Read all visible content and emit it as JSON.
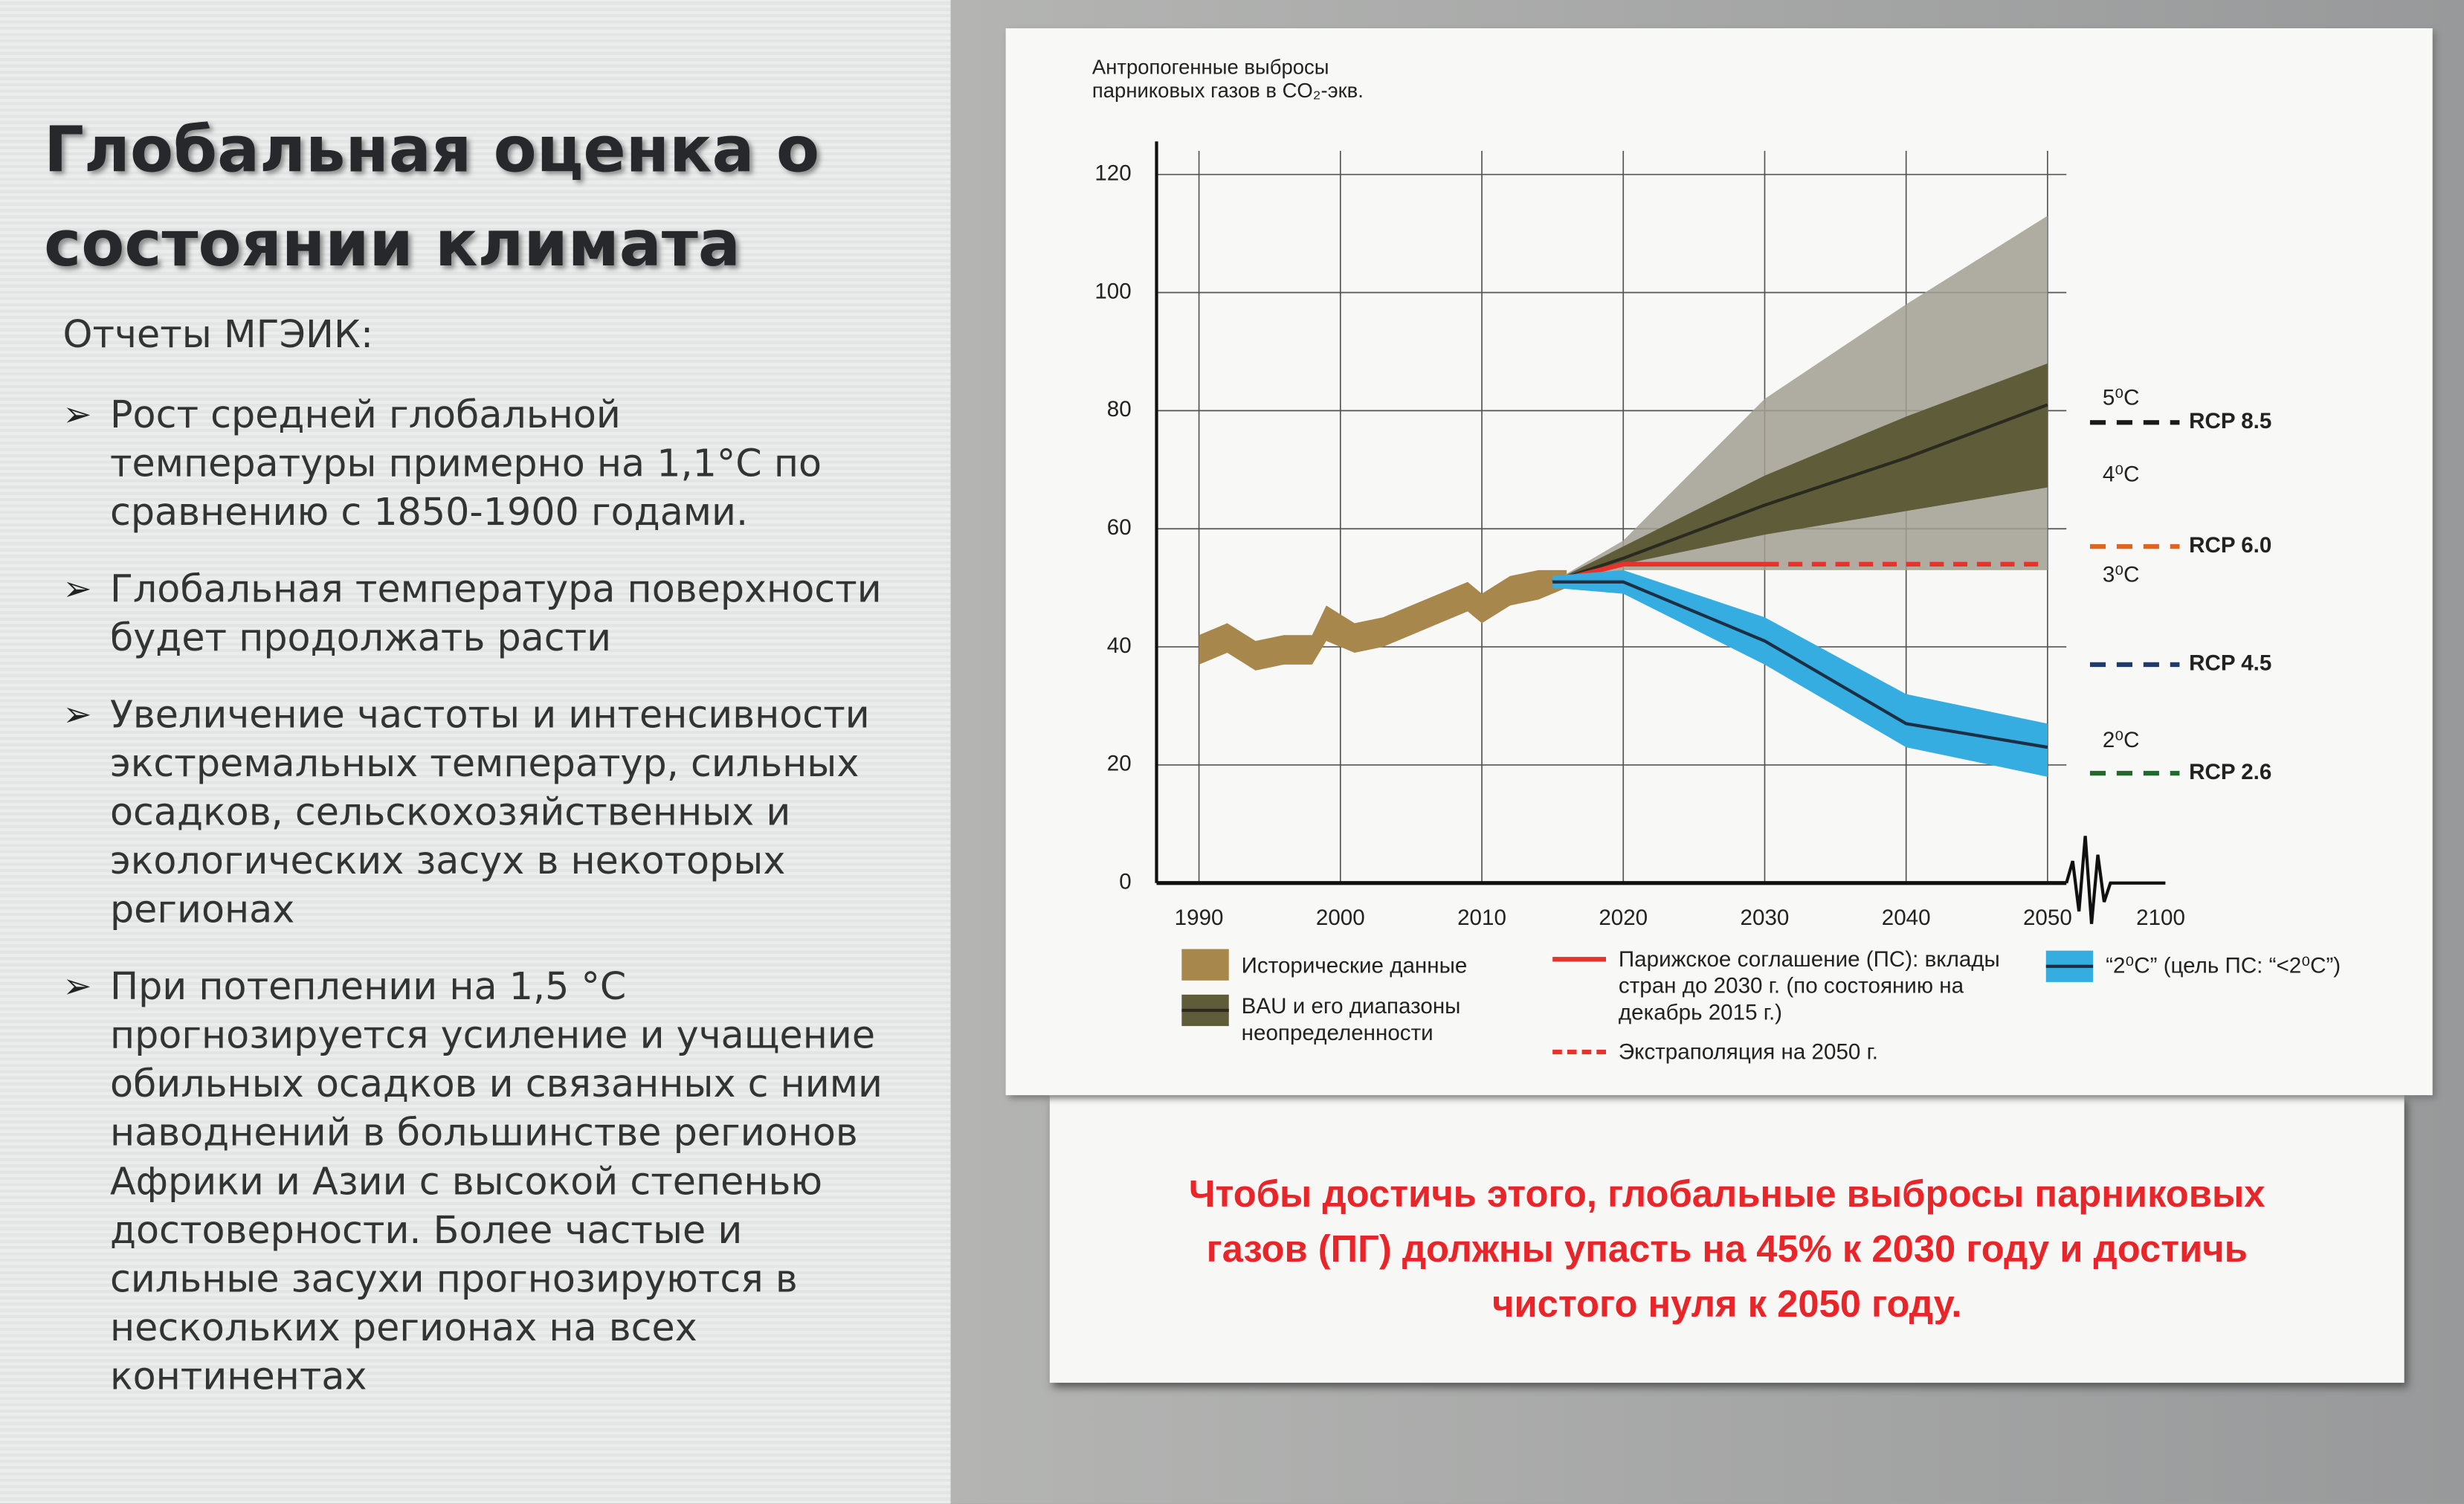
{
  "slide": {
    "title_lines": [
      "Глобальная оценка о",
      "состоянии климата"
    ],
    "subtitle": "Отчеты МГЭИК:",
    "bullets": [
      [
        "Рост средней глобальной",
        "температуры примерно на 1,1°С по",
        "сравнению с 1850-1900 годами."
      ],
      [
        "Глобальная температура поверхности",
        "будет продолжать расти"
      ],
      [
        "Увеличение частоты и интенсивности",
        "экстремальных температур, сильных",
        "осадков, сельскохозяйственных и",
        "экологических засух в некоторых",
        "регионах"
      ],
      [
        "При потеплении на 1,5 °С",
        "прогнозируется усиление и учащение",
        "обильных осадков и связанных с ними",
        "наводнений в большинстве регионов",
        "Африки и Азии с высокой степенью",
        "достоверности. Более частые и",
        "сильные засухи прогнозируются в",
        "нескольких регионах на всех",
        "континентах"
      ]
    ],
    "caption_lines": [
      "Чтобы достичь этого, глобальные выбросы парниковых",
      "газов (ПГ) должны упасть на 45% к 2030 году и достичь",
      "чистого нуля к 2050 году."
    ]
  },
  "chart_data": {
    "type": "line",
    "title_lines": [
      "Антропогенные выбросы",
      "парниковых газов в CO₂-экв."
    ],
    "xlim": [
      1987,
      2050
    ],
    "ylim": [
      0,
      124
    ],
    "xticks": [
      1990,
      2000,
      2010,
      2020,
      2030,
      2040,
      2050
    ],
    "yticks": [
      0,
      20,
      40,
      60,
      80,
      100,
      120
    ],
    "x_axis_end_label": "2100",
    "grid": true,
    "series": [
      {
        "name": "Исторические данные",
        "color": "#a8874c",
        "x": [
          1990,
          1992,
          1994,
          1996,
          1998,
          1999,
          2001,
          2003,
          2005,
          2007,
          2009,
          2010,
          2012,
          2014,
          2016
        ],
        "lower": [
          37,
          39,
          36,
          37,
          37,
          41,
          39,
          40,
          42,
          44,
          46,
          44,
          47,
          48,
          50
        ],
        "upper": [
          42,
          44,
          41,
          42,
          42,
          47,
          44,
          45,
          47,
          49,
          51,
          49,
          52,
          53,
          53
        ]
      },
      {
        "name": "BAU и его диапазоны неопределенности",
        "color": "#2b2a1e",
        "band_color": "#5f5c3a",
        "outer_color": "#a29f92",
        "x": [
          2015,
          2020,
          2030,
          2040,
          2050
        ],
        "values": [
          51,
          55,
          64,
          72,
          81
        ],
        "lower": [
          51,
          54,
          59,
          63,
          67
        ],
        "upper": [
          51,
          57,
          69,
          79,
          88
        ],
        "outer_lower": [
          51,
          53,
          53,
          53,
          53
        ],
        "outer_upper": [
          51,
          58,
          82,
          98,
          113
        ]
      },
      {
        "name": "Парижское соглашение (ПС): вклады стран до 2030 г. (по состоянию на декабрь 2015 г.)",
        "color": "#e8322c",
        "x": [
          2015,
          2020,
          2030
        ],
        "values": [
          51,
          54,
          54
        ]
      },
      {
        "name": "Экстраполяция на 2050 г.",
        "color": "#e8322c",
        "dash": true,
        "x": [
          2030,
          2050
        ],
        "values": [
          54,
          54
        ]
      },
      {
        "name": "“2⁰C” (цель ПС: “<2⁰C”)",
        "color": "#1d2f45",
        "band_color": "#35ade0",
        "x": [
          2015,
          2020,
          2025,
          2030,
          2040,
          2050
        ],
        "values": [
          51,
          51,
          46,
          41,
          27,
          23
        ],
        "lower": [
          50,
          49,
          43,
          37,
          23,
          18
        ],
        "upper": [
          52,
          53,
          49,
          45,
          32,
          27
        ]
      }
    ],
    "temperature_labels": [
      {
        "label": "5⁰C",
        "value": 82
      },
      {
        "label": "4⁰C",
        "value": 69
      },
      {
        "label": "3⁰C",
        "value": 52
      },
      {
        "label": "2⁰C",
        "value": 24
      }
    ],
    "rcp_lines": [
      {
        "name": "RCP 8.5",
        "color": "#1a1a1a",
        "value": 78
      },
      {
        "name": "RCP 6.0",
        "color": "#e0641e",
        "value": 57
      },
      {
        "name": "RCP 4.5",
        "color": "#1f3a6b",
        "value": 37
      },
      {
        "name": "RCP 2.6",
        "color": "#1e6b2e",
        "value": 18.6
      }
    ]
  }
}
